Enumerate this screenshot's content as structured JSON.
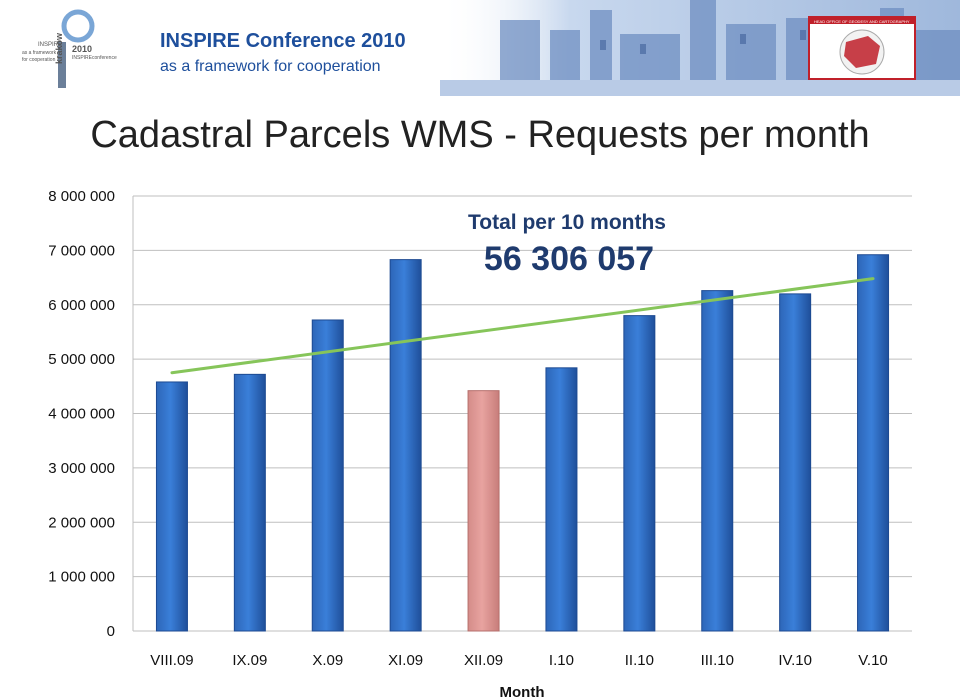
{
  "banner": {
    "title": "INSPIRE Conference 2010",
    "subtitle": "as a framework for cooperation",
    "logo_text_1": "INSPIRE",
    "logo_text_2": "as a framework",
    "logo_text_3": "for cooperation",
    "logo_city": "krakow",
    "logo_year": "2010",
    "logo_conf": "INSPIREconference",
    "right_logo_text": "HEAD OFFICE OF GEODESY AND CARTOGRAPHY"
  },
  "chart_data": {
    "type": "bar",
    "title": "Cadastral Parcels WMS - Requests per month",
    "xlabel": "Month",
    "ylabel": "",
    "ylim": [
      0,
      8000000
    ],
    "yticks": [
      0,
      1000000,
      2000000,
      3000000,
      4000000,
      5000000,
      6000000,
      7000000,
      8000000
    ],
    "ytick_labels": [
      "0",
      "1 000 000",
      "2 000 000",
      "3 000 000",
      "4 000 000",
      "5 000 000",
      "6 000 000",
      "7 000 000",
      "8 000 000"
    ],
    "categories": [
      "VIII.09",
      "IX.09",
      "X.09",
      "XI.09",
      "XII.09",
      "I.10",
      "II.10",
      "III.10",
      "IV.10",
      "V.10"
    ],
    "values": [
      4580000,
      4720000,
      5720000,
      6830000,
      4420000,
      4840000,
      5800000,
      6260000,
      6200000,
      6920000
    ],
    "highlight_index": 4,
    "colors": {
      "bar": "#3a7fd9",
      "highlight": "#e8a3a0",
      "trend": "#86c55a"
    },
    "trendline": {
      "start_value": 4750000,
      "end_value": 6480000
    },
    "annotation": {
      "label": "Total per 10 months",
      "value": "56 306 057"
    },
    "grid": true
  }
}
